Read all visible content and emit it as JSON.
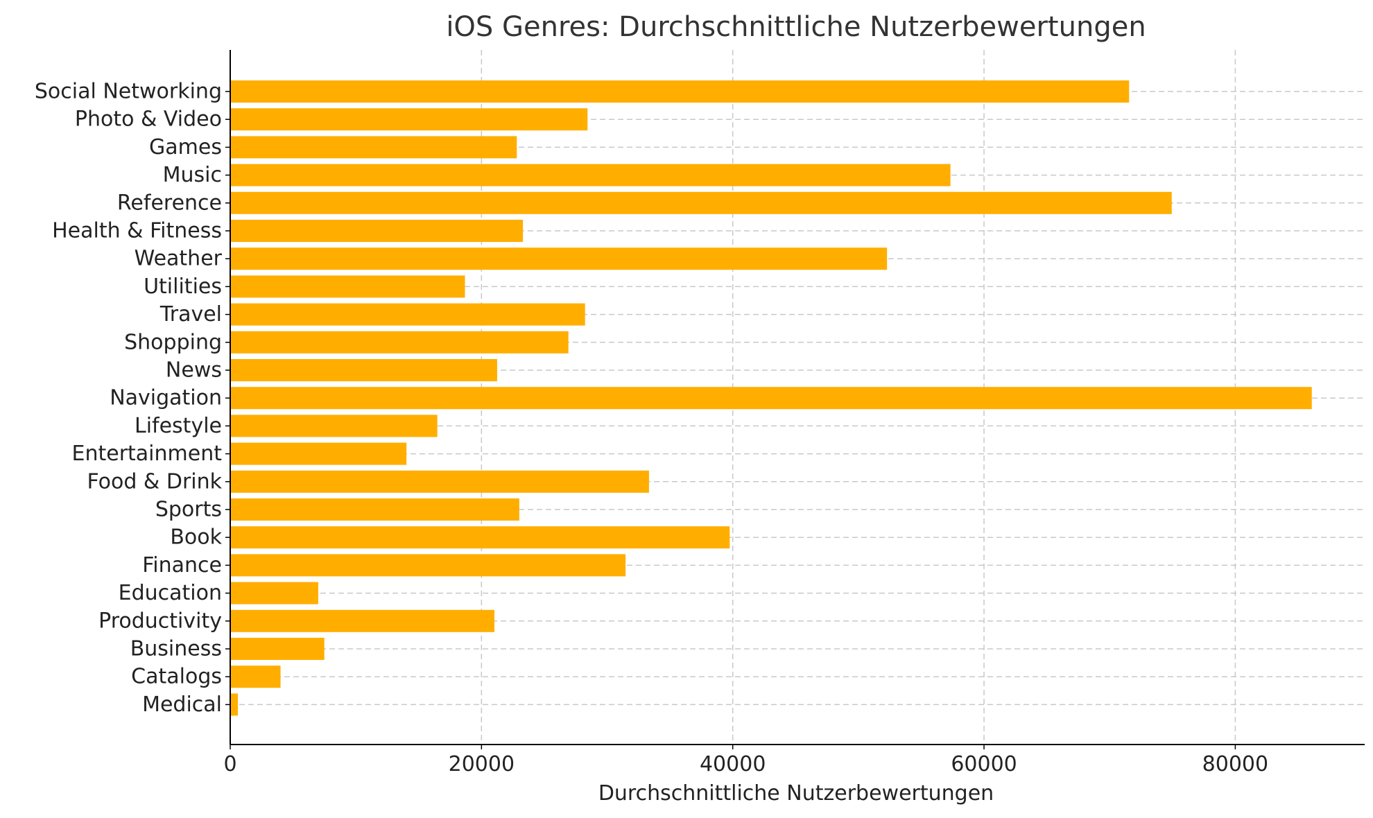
{
  "chart_data": {
    "type": "bar",
    "orientation": "horizontal",
    "title": "iOS Genres: Durchschnittliche Nutzerbewertungen",
    "xlabel": "Durchschnittliche Nutzerbewertungen",
    "ylabel": "",
    "xlim": [
      0,
      90300
    ],
    "xticks": [
      0,
      20000,
      40000,
      60000,
      80000
    ],
    "grid": true,
    "bar_color": "#FFAE00",
    "categories": [
      "Social Networking",
      "Photo & Video",
      "Games",
      "Music",
      "Reference",
      "Health & Fitness",
      "Weather",
      "Utilities",
      "Travel",
      "Shopping",
      "News",
      "Navigation",
      "Lifestyle",
      "Entertainment",
      "Food & Drink",
      "Sports",
      "Book",
      "Finance",
      "Education",
      "Productivity",
      "Business",
      "Catalogs",
      "Medical"
    ],
    "values": [
      71548,
      28441,
      22812,
      57327,
      74942,
      23298,
      52280,
      18684,
      28243,
      26919,
      21248,
      86090,
      16485,
      14030,
      33334,
      23009,
      39758,
      31468,
      7004,
      21028,
      7491,
      4004,
      612
    ]
  }
}
